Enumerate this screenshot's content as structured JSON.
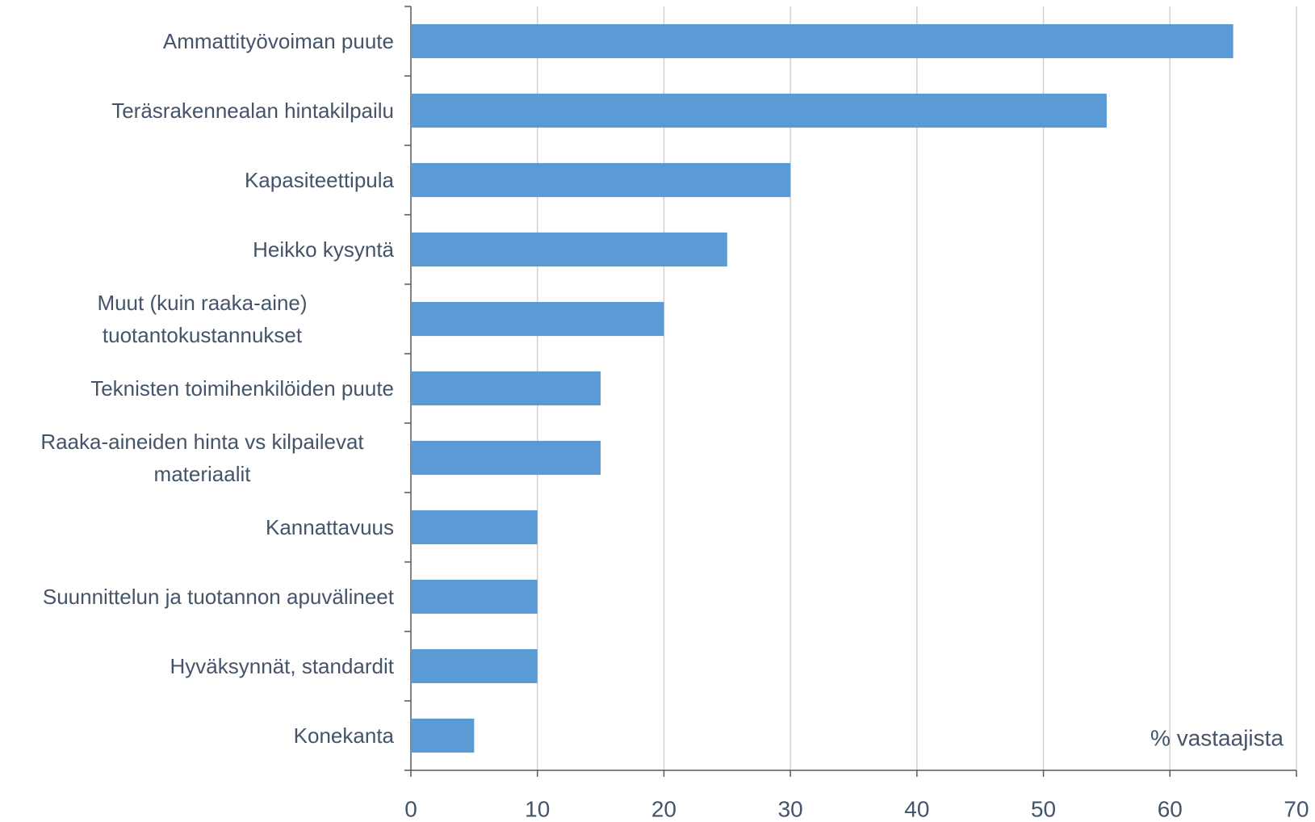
{
  "chart_data": {
    "type": "bar",
    "orientation": "horizontal",
    "categories": [
      "Ammattityövoiman puute",
      "Teräsrakennealan hintakilpailu",
      "Kapasiteettipula",
      "Heikko kysyntä",
      "Muut (kuin raaka-aine) tuotantokustannukset",
      "Teknisten toimihenkilöiden puute",
      "Raaka-aineiden hinta vs kilpailevat materiaalit",
      "Kannattavuus",
      "Suunnittelun ja tuotannon apuvälineet",
      "Hyväksynnät, standardit",
      "Konekanta"
    ],
    "values": [
      65,
      55,
      30,
      25,
      20,
      15,
      15,
      10,
      10,
      10,
      5
    ],
    "color": "#5b9bd5",
    "xlim": [
      0,
      70
    ],
    "xticks": [
      0,
      10,
      20,
      30,
      40,
      50,
      60,
      70
    ],
    "grid": true,
    "annotation": "% vastaajista"
  }
}
